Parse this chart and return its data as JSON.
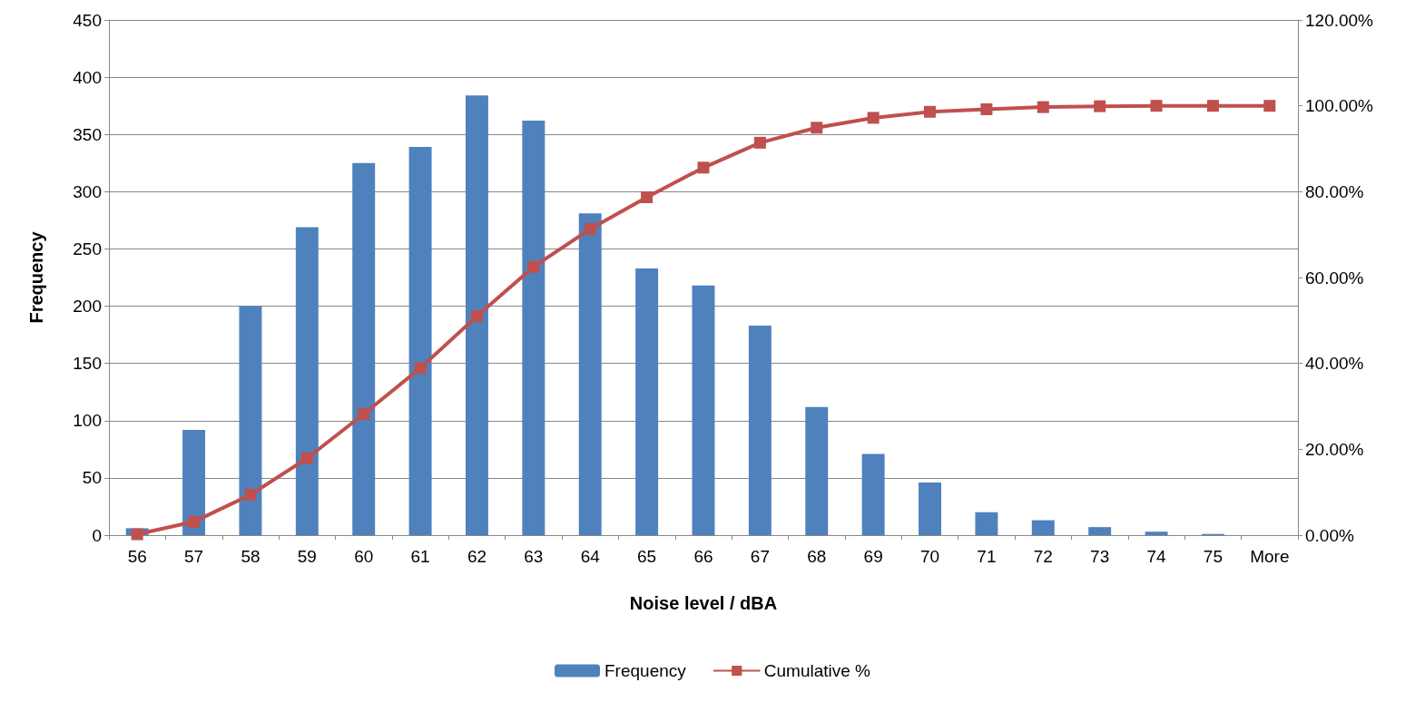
{
  "chart_data": {
    "type": "bar",
    "xlabel": "Noise level / dBA",
    "ylabel": "Frequency",
    "categories": [
      "56",
      "57",
      "58",
      "59",
      "60",
      "61",
      "62",
      "63",
      "64",
      "65",
      "66",
      "67",
      "68",
      "69",
      "70",
      "71",
      "72",
      "73",
      "74",
      "75",
      "More"
    ],
    "series": [
      {
        "name": "Frequency",
        "color": "#4f81bd",
        "values": [
          6,
          92,
          200,
          269,
          325,
          339,
          384,
          362,
          281,
          233,
          218,
          183,
          112,
          71,
          46,
          20,
          13,
          7,
          3,
          1,
          0
        ]
      },
      {
        "name": "Cumulative %",
        "type": "line",
        "axis": "y2",
        "color": "#c0504d",
        "values": [
          0.2,
          3.1,
          9.4,
          17.9,
          28.2,
          38.9,
          51.0,
          62.5,
          71.3,
          78.7,
          85.6,
          91.4,
          94.9,
          97.2,
          98.6,
          99.2,
          99.7,
          99.9,
          100,
          100,
          100
        ]
      }
    ],
    "ylim": [
      0,
      450
    ],
    "yticks": [
      0,
      50,
      100,
      150,
      200,
      250,
      300,
      350,
      400,
      450
    ],
    "y2lim": [
      0,
      120
    ],
    "y2ticks": [
      {
        "value": 0,
        "label": "0.00%"
      },
      {
        "value": 20,
        "label": "20.00%"
      },
      {
        "value": 40,
        "label": "40.00%"
      },
      {
        "value": 60,
        "label": "60.00%"
      },
      {
        "value": 80,
        "label": "80.00%"
      },
      {
        "value": 100,
        "label": "100.00%"
      },
      {
        "value": 120,
        "label": "120.00%"
      }
    ],
    "grid": "y",
    "legend": "bottom",
    "marker": "square",
    "line_style": "solid"
  }
}
